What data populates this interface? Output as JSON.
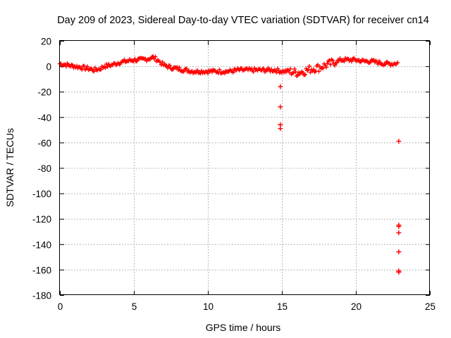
{
  "chart_data": {
    "type": "scatter",
    "title": "Day 209 of 2023, Sidereal Day-to-day VTEC variation (SDTVAR) for receiver cn14",
    "xlabel": "GPS time / hours",
    "ylabel": "SDTVAR / TECUs",
    "xlim": [
      0,
      25
    ],
    "ylim": [
      -180,
      20
    ],
    "xticks": [
      0,
      5,
      10,
      15,
      20,
      25
    ],
    "yticks": [
      20,
      0,
      -20,
      -40,
      -60,
      -80,
      -100,
      -120,
      -140,
      -160,
      -180
    ],
    "grid": true,
    "marker": "+",
    "series_color": "#ff0000",
    "series": [
      {
        "name": "SDTVAR",
        "trace_x": [
          0.0,
          0.5,
          1.0,
          1.5,
          2.0,
          2.3,
          2.7,
          3.0,
          3.5,
          4.0,
          4.5,
          5.0,
          5.5,
          6.0,
          6.3,
          6.6,
          7.0,
          7.5,
          8.0,
          8.5,
          9.0,
          9.5,
          10.0,
          10.5,
          11.0,
          11.5,
          12.0,
          12.5,
          13.0,
          13.5,
          14.0,
          14.5,
          15.0,
          15.5,
          16.0,
          16.5,
          17.0,
          17.5,
          18.0,
          18.5,
          19.0,
          19.5,
          20.0,
          20.5,
          21.0,
          21.5,
          22.0,
          22.5,
          22.9
        ],
        "trace_y": [
          2,
          1,
          0,
          -1,
          -2,
          -3,
          -2,
          0,
          1,
          3,
          4,
          5,
          5,
          6,
          7,
          5,
          1,
          -1,
          -2,
          -3,
          -4,
          -4,
          -4,
          -4,
          -4,
          -4,
          -3,
          -3,
          -3,
          -3,
          -3,
          -3,
          -4,
          -4,
          -5,
          -4,
          -2,
          -1,
          1,
          3,
          5,
          5,
          5,
          4,
          4,
          3,
          2,
          2,
          3
        ],
        "outliers_x": [
          14.9,
          14.9,
          14.9,
          14.9,
          22.9,
          22.9,
          22.9,
          22.9,
          22.9,
          22.9,
          22.9
        ],
        "outliers_y": [
          -16,
          -32,
          -46,
          -49,
          -59,
          -125,
          -126,
          -131,
          -146,
          -161,
          -162
        ]
      }
    ]
  }
}
